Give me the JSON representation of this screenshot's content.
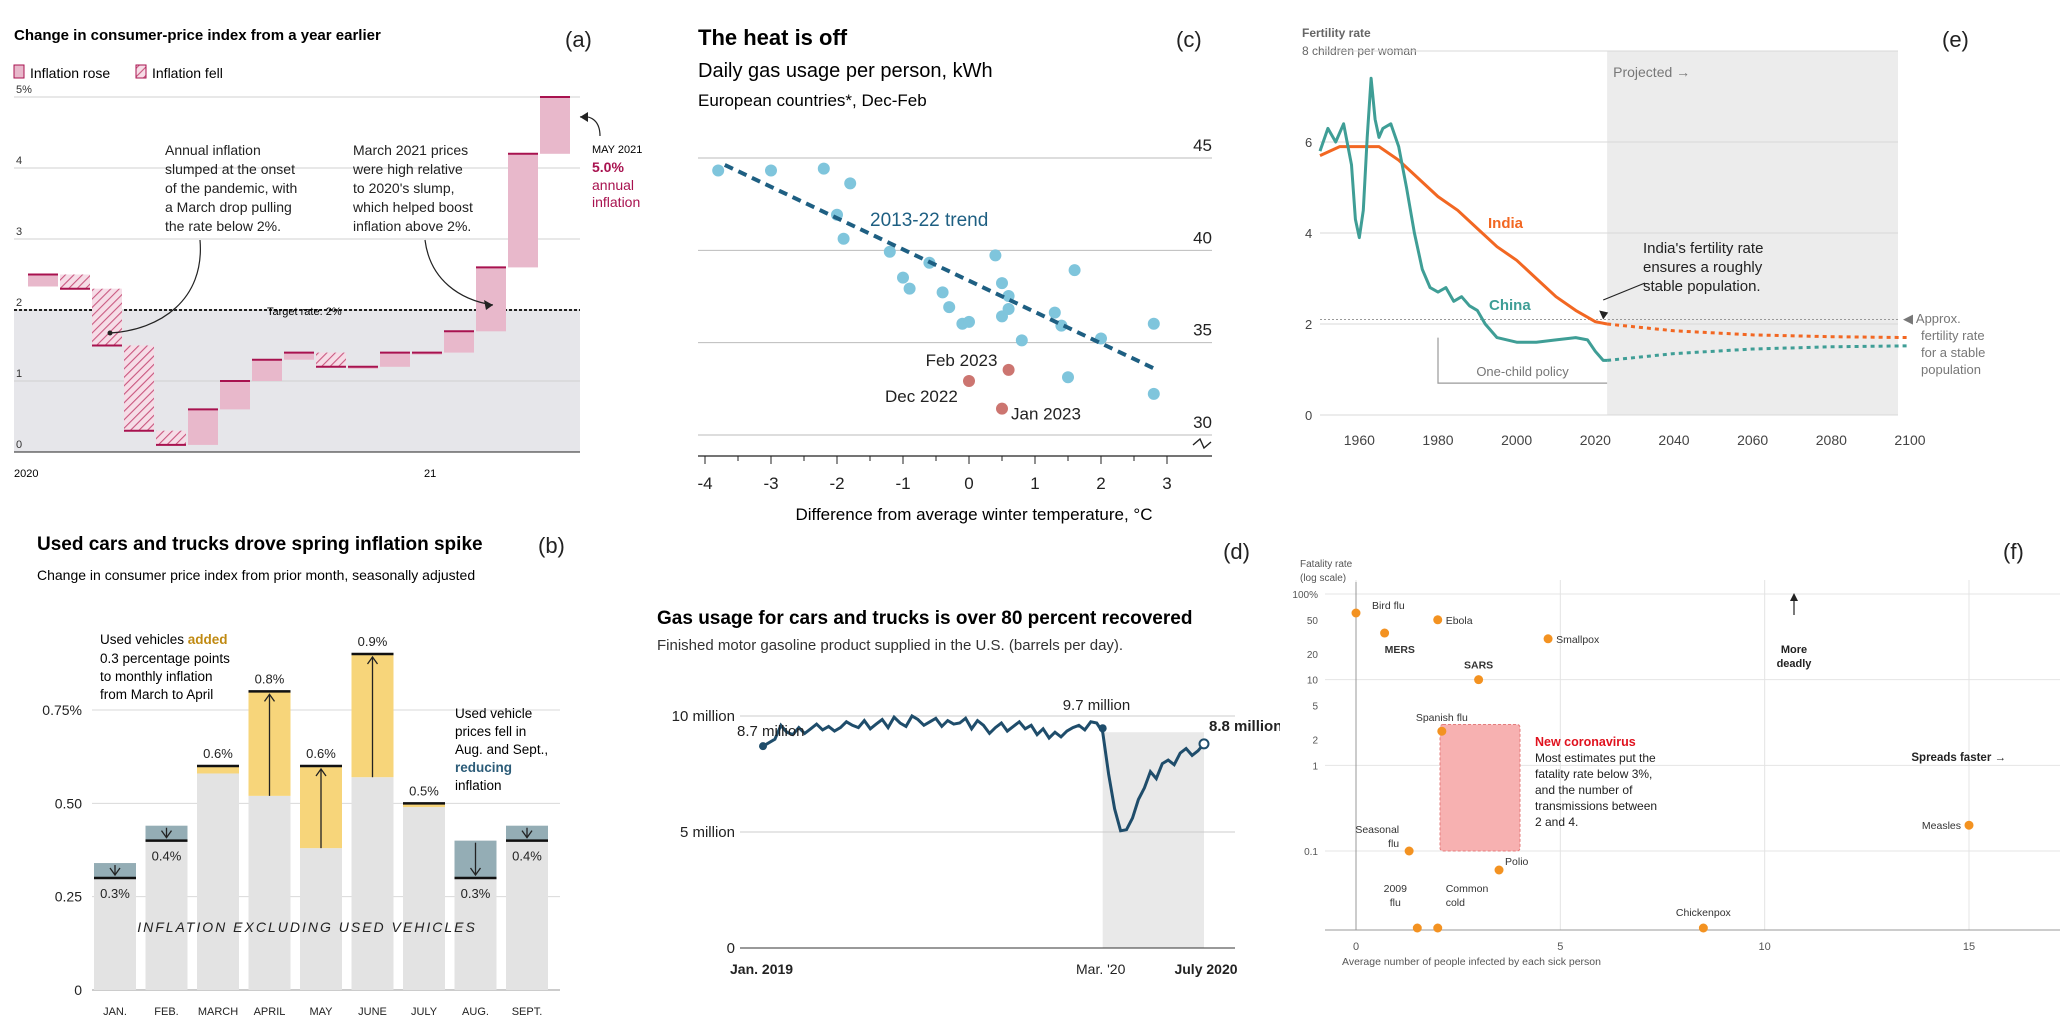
{
  "chart_data": [
    {
      "panel": "(a)",
      "type": "waterfall",
      "title": "Change in consumer-price index from a year earlier",
      "legend": [
        "Inflation rose",
        "Inflation fell"
      ],
      "legend_placement": "top-left",
      "yticks": [
        "5%",
        "4",
        "3",
        "2",
        "1",
        "0"
      ],
      "ylim": [
        0,
        5
      ],
      "xticks": [
        "2020",
        "21"
      ],
      "target_label": "Target rate: 2%",
      "target": 2,
      "colors": {
        "rose": "#e8b8cb",
        "edge": "#a8124f",
        "band": "#e6e6ea"
      },
      "annotations": [
        "Annual inflation slumped at the onset of the pandemic, with a March drop pulling the rate below 2%.",
        "March 2021 prices were high relative to 2020's slump, which helped boost inflation above 2%."
      ],
      "callout": {
        "date": "MAY 2021",
        "value": "5.0%",
        "text": "annual inflation"
      },
      "values": [
        2.5,
        2.3,
        1.5,
        0.3,
        0.1,
        0.6,
        1.0,
        1.3,
        1.4,
        1.2,
        1.2,
        1.4,
        1.4,
        1.7,
        2.6,
        4.2,
        5.0
      ]
    },
    {
      "panel": "(b)",
      "type": "bar",
      "title": "Used cars and trucks drove spring inflation spike",
      "subtitle": "Change in consumer price index from prior month, seasonally adjusted",
      "categories": [
        "JAN.",
        "FEB.",
        "MARCH",
        "APRIL",
        "MAY",
        "JUNE",
        "JULY",
        "AUG.",
        "SEPT."
      ],
      "total": [
        0.3,
        0.4,
        0.6,
        0.8,
        0.6,
        0.9,
        0.5,
        0.3,
        0.4
      ],
      "labels": [
        "0.3%",
        "0.4%",
        "0.6%",
        "0.8%",
        "0.6%",
        "0.9%",
        "0.5%",
        "0.3%",
        "0.4%"
      ],
      "excluding_used": [
        0.34,
        0.44,
        0.58,
        0.52,
        0.38,
        0.57,
        0.49,
        0.4,
        0.44
      ],
      "yticks": [
        "0.75%",
        "0.50",
        "0.25",
        "0"
      ],
      "ylim": [
        0,
        1.0
      ],
      "inner_label": "INFLATION EXCLUDING USED VEHICLES",
      "note_added": {
        "pre": "Used vehicles ",
        "hl": "added",
        "post_lines": [
          "0.3 percentage points",
          "to monthly inflation",
          "from March to April"
        ]
      },
      "note_fell": {
        "lines": [
          "Used vehicle",
          "prices fell in",
          "Aug. and Sept.,"
        ],
        "hl": "reducing",
        "post": "inflation"
      },
      "colors": {
        "base": "#e3e3e3",
        "add": "#f7d57a",
        "sub": "#94adb5",
        "added_text": "#c08a12",
        "reducing_text": "#2c5c78"
      }
    },
    {
      "panel": "(c)",
      "type": "scatter",
      "title": "The heat is off",
      "subtitle": "Daily gas usage per person, kWh",
      "subtitle2": "European countries*, Dec-Feb",
      "xlabel": "Difference from average winter temperature, °C",
      "xticks": [
        "-4",
        "-3",
        "-2",
        "-1",
        "0",
        "1",
        "2",
        "3"
      ],
      "xlim": [
        -4,
        3
      ],
      "yticks": [
        "45",
        "40",
        "35",
        "30"
      ],
      "ylim": [
        28.5,
        46
      ],
      "trend_label": "2013-22 trend",
      "trend": [
        [
          -3.7,
          44.3
        ],
        [
          2.85,
          33.2
        ]
      ],
      "points": [
        [
          -3.8,
          44.0
        ],
        [
          -3.0,
          44.0
        ],
        [
          -2.2,
          44.1
        ],
        [
          -1.8,
          43.3
        ],
        [
          -2.0,
          41.6
        ],
        [
          -1.9,
          40.3
        ],
        [
          -1.2,
          39.6
        ],
        [
          -1.0,
          38.2
        ],
        [
          -0.9,
          37.6
        ],
        [
          -0.6,
          39.0
        ],
        [
          -0.4,
          37.4
        ],
        [
          -0.3,
          36.6
        ],
        [
          -0.1,
          35.7
        ],
        [
          0.0,
          35.8
        ],
        [
          0.4,
          39.4
        ],
        [
          0.5,
          36.1
        ],
        [
          0.5,
          37.9
        ],
        [
          0.6,
          37.2
        ],
        [
          0.6,
          36.5
        ],
        [
          0.8,
          34.8
        ],
        [
          1.3,
          36.3
        ],
        [
          1.4,
          35.6
        ],
        [
          1.5,
          32.8
        ],
        [
          1.6,
          38.6
        ],
        [
          2.0,
          34.9
        ],
        [
          2.8,
          35.7
        ],
        [
          2.8,
          31.9
        ]
      ],
      "highlights": [
        {
          "label": "Feb 2023",
          "x": 0.6,
          "y": 33.2
        },
        {
          "label": "Dec 2022",
          "x": 0.0,
          "y": 32.6
        },
        {
          "label": "Jan 2023",
          "x": 0.5,
          "y": 31.1
        }
      ],
      "colors": {
        "points": "#7fc5dc",
        "trend": "#1e5f82",
        "highlight": "#cc7570"
      }
    },
    {
      "panel": "(d)",
      "type": "line",
      "title": "Gas usage for cars and trucks is over 80 percent recovered",
      "subtitle": "Finished motor gasoline product supplied in the U.S. (barrels per day).",
      "yticks": [
        "10 million",
        "5 million",
        "0"
      ],
      "ylim": [
        0,
        10
      ],
      "xticks": [
        "Jan. 2019",
        "Mar. '20",
        "July 2020"
      ],
      "annotations": [
        "8.7 million",
        "9.7 million",
        "8.8 million"
      ],
      "values": [
        8.7,
        8.85,
        9.0,
        9.6,
        9.3,
        9.2,
        9.5,
        9.25,
        9.45,
        9.65,
        9.4,
        9.55,
        9.35,
        9.5,
        9.75,
        9.6,
        9.5,
        9.8,
        9.45,
        9.65,
        9.85,
        9.5,
        9.95,
        9.7,
        9.55,
        10.0,
        9.85,
        9.6,
        9.75,
        9.9,
        9.55,
        9.8,
        9.65,
        9.7,
        9.9,
        9.45,
        9.8,
        9.6,
        9.25,
        9.5,
        9.7,
        9.35,
        9.55,
        9.75,
        9.45,
        9.6,
        9.2,
        9.45,
        9.05,
        9.3,
        9.1,
        9.35,
        9.5,
        9.6,
        9.4,
        9.75,
        9.7,
        9.3,
        7.5,
        6.0,
        5.05,
        5.1,
        5.6,
        6.4,
        6.9,
        7.6,
        7.3,
        7.95,
        8.1,
        7.9,
        8.4,
        8.6,
        8.3,
        8.5,
        8.8
      ],
      "colors": {
        "line": "#1f4d6b",
        "shade": "#e9e9e9"
      }
    },
    {
      "panel": "(e)",
      "type": "line",
      "ylabel": "Fertility rate",
      "ylabel2": "8 children per woman",
      "yticks": [
        "6",
        "4",
        "2",
        "0"
      ],
      "ylim": [
        0,
        8
      ],
      "xticks": [
        "1960",
        "1980",
        "2000",
        "2020",
        "2040",
        "2060",
        "2080",
        "2100"
      ],
      "xlim": [
        1950,
        2100
      ],
      "projected_label": "Projected →",
      "stable_rate_label": [
        "◀ Approx.",
        "fertility rate",
        "for a stable",
        "population"
      ],
      "policy_label": "One-child policy",
      "annotation": [
        "India's fertility rate",
        "ensures a roughly",
        "stable population."
      ],
      "series": [
        {
          "name": "India",
          "color": "#f26722",
          "x": [
            1950,
            1955,
            1960,
            1965,
            1970,
            1975,
            1980,
            1985,
            1990,
            1995,
            2000,
            2005,
            2010,
            2015,
            2020,
            2023
          ],
          "values": [
            5.7,
            5.9,
            5.9,
            5.9,
            5.6,
            5.2,
            4.8,
            4.5,
            4.1,
            3.7,
            3.4,
            3.0,
            2.6,
            2.3,
            2.05,
            2.0
          ],
          "proj_x": [
            2023,
            2040,
            2060,
            2080,
            2100
          ],
          "proj": [
            2.0,
            1.85,
            1.76,
            1.72,
            1.7
          ]
        },
        {
          "name": "China",
          "color": "#3f9e96",
          "x": [
            1950,
            1952,
            1954,
            1956,
            1958,
            1959,
            1960,
            1961,
            1962,
            1963,
            1964,
            1965,
            1966,
            1968,
            1970,
            1972,
            1974,
            1976,
            1978,
            1980,
            1982,
            1984,
            1986,
            1988,
            1990,
            1992,
            1995,
            2000,
            2005,
            2010,
            2015,
            2018,
            2020,
            2022,
            2023
          ],
          "values": [
            5.8,
            6.3,
            6.0,
            6.4,
            5.5,
            4.3,
            3.9,
            4.5,
            6.1,
            7.4,
            6.5,
            6.1,
            6.3,
            6.4,
            5.9,
            5.0,
            4.0,
            3.2,
            2.8,
            2.7,
            2.8,
            2.5,
            2.6,
            2.4,
            2.3,
            2.0,
            1.7,
            1.6,
            1.6,
            1.65,
            1.7,
            1.65,
            1.4,
            1.2,
            1.2
          ],
          "proj_x": [
            2023,
            2040,
            2060,
            2080,
            2100
          ],
          "proj": [
            1.2,
            1.35,
            1.45,
            1.5,
            1.52
          ]
        }
      ],
      "colors": {
        "projected_bg": "#ececec",
        "policy": "#9a9a9a"
      }
    },
    {
      "panel": "(f)",
      "type": "scatter",
      "ylabel": "Fatality rate",
      "ylabel2": "(log scale)",
      "yscale": "log",
      "yticks": [
        "100%",
        "50",
        "20",
        "10",
        "5",
        "2",
        "1",
        "0.1"
      ],
      "ytick_values": [
        100,
        50,
        20,
        10,
        5,
        2,
        1,
        0.1
      ],
      "xticks": [
        "0",
        "5",
        "10",
        "15"
      ],
      "xlim": [
        -0.5,
        17.5
      ],
      "xlabel": "Average number of people infected by each sick person",
      "more_deadly": [
        "More",
        "deadly"
      ],
      "spreads_faster": "Spreads faster →",
      "box": {
        "x0": 2.0,
        "x1": 4.0,
        "y0": 3.0,
        "y1": 0.1
      },
      "box_title": "New coronavirus",
      "box_text": [
        "Most estimates put the",
        "fatality rate below 3%,",
        "and the number of",
        "transmissions between",
        "2 and 4."
      ],
      "points": [
        {
          "label": "Bird flu",
          "x": 0.0,
          "y": 60
        },
        {
          "label": "MERS",
          "x": 0.7,
          "y": 35
        },
        {
          "label": "Ebola",
          "x": 2.0,
          "y": 50
        },
        {
          "label": "SARS",
          "x": 3.0,
          "y": 10
        },
        {
          "label": "Smallpox",
          "x": 4.7,
          "y": 30
        },
        {
          "label": "Spanish flu",
          "x": 2.1,
          "y": 2.5
        },
        {
          "label": "Seasonal flu",
          "x": 1.3,
          "y": 0.1
        },
        {
          "label": "Polio",
          "x": 3.5,
          "y": 0.06
        },
        {
          "label": "2009 flu",
          "x": 1.5,
          "y": 0.02
        },
        {
          "label": "Common cold",
          "x": 2.0,
          "y": 0.02
        },
        {
          "label": "Chickenpox",
          "x": 8.5,
          "y": 0.02
        },
        {
          "label": "Measles",
          "x": 15.0,
          "y": 0.2
        }
      ],
      "colors": {
        "points": "#f39221",
        "box": "#f7b1b1",
        "box_edge": "#e57c7c",
        "box_title": "#e0121e"
      }
    }
  ]
}
